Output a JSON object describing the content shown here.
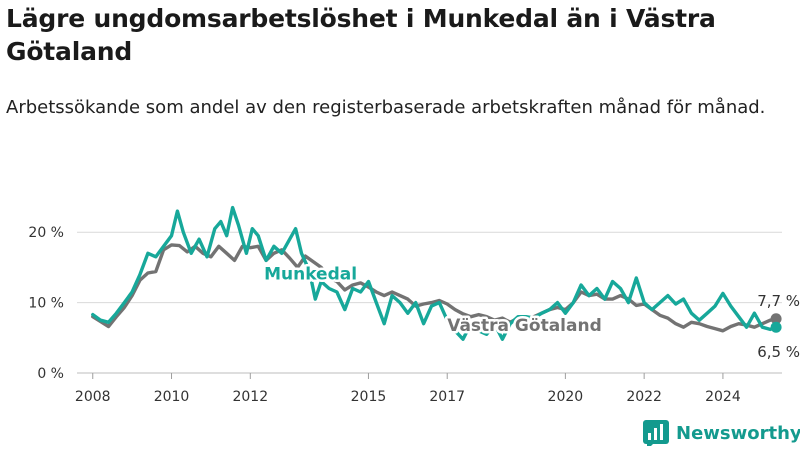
{
  "title": "Lägre ungdomsarbetslöshet i Munkedal än i Västra Götaland",
  "subtitle": "Arbetssökande som andel av den registerbaserade arbetskraften månad för månad.",
  "brand": "Newsworthy",
  "colors": {
    "munkedal": "#17a89a",
    "vastra_gotaland": "#737373",
    "grid": "#d9d9d9",
    "text": "#333333"
  },
  "chart_data": {
    "type": "line",
    "title": "Lägre ungdomsarbetslöshet i Munkedal än i Västra Götaland",
    "subtitle": "Arbetssökande som andel av den registerbaserade arbetskraften månad för månad.",
    "x_ticks": [
      2008,
      2010,
      2012,
      2015,
      2017,
      2020,
      2022,
      2024
    ],
    "xlim": [
      2007.6,
      2025.5
    ],
    "y_ticks": [
      {
        "value": 0,
        "label": "0 %"
      },
      {
        "value": 10,
        "label": "10 %"
      },
      {
        "value": 20,
        "label": "20 %"
      }
    ],
    "ylim": [
      0,
      25
    ],
    "grid": "horizontal",
    "end_labels": [
      {
        "series": "Västra Götaland",
        "text": "7,7 %"
      },
      {
        "series": "Munkedal",
        "text": "6,5 %"
      }
    ],
    "series": [
      {
        "name": "Västra Götaland",
        "color": "#737373",
        "points": [
          [
            2008.0,
            8.0
          ],
          [
            2008.2,
            7.3
          ],
          [
            2008.4,
            6.6
          ],
          [
            2008.6,
            8.0
          ],
          [
            2008.8,
            9.3
          ],
          [
            2009.0,
            11.0
          ],
          [
            2009.2,
            13.2
          ],
          [
            2009.4,
            14.2
          ],
          [
            2009.6,
            14.4
          ],
          [
            2009.8,
            17.5
          ],
          [
            2010.0,
            18.2
          ],
          [
            2010.2,
            18.1
          ],
          [
            2010.4,
            17.2
          ],
          [
            2010.6,
            18.0
          ],
          [
            2010.8,
            17.0
          ],
          [
            2011.0,
            16.5
          ],
          [
            2011.2,
            18.0
          ],
          [
            2011.4,
            17.0
          ],
          [
            2011.6,
            16.0
          ],
          [
            2011.8,
            18.0
          ],
          [
            2012.0,
            17.8
          ],
          [
            2012.2,
            18.0
          ],
          [
            2012.4,
            16.0
          ],
          [
            2012.6,
            17.0
          ],
          [
            2012.8,
            17.5
          ],
          [
            2013.0,
            16.3
          ],
          [
            2013.2,
            15.0
          ],
          [
            2013.4,
            16.6
          ],
          [
            2013.6,
            15.8
          ],
          [
            2013.8,
            15.0
          ],
          [
            2014.0,
            13.5
          ],
          [
            2014.2,
            13.0
          ],
          [
            2014.4,
            11.8
          ],
          [
            2014.6,
            12.5
          ],
          [
            2014.8,
            12.8
          ],
          [
            2015.0,
            12.2
          ],
          [
            2015.2,
            11.5
          ],
          [
            2015.4,
            11.0
          ],
          [
            2015.6,
            11.5
          ],
          [
            2015.8,
            11.0
          ],
          [
            2016.0,
            10.5
          ],
          [
            2016.2,
            9.5
          ],
          [
            2016.4,
            9.8
          ],
          [
            2016.6,
            10.0
          ],
          [
            2016.8,
            10.3
          ],
          [
            2017.0,
            9.8
          ],
          [
            2017.2,
            9.0
          ],
          [
            2017.4,
            8.4
          ],
          [
            2017.6,
            8.0
          ],
          [
            2017.8,
            8.3
          ],
          [
            2018.0,
            8.0
          ],
          [
            2018.2,
            7.5
          ],
          [
            2018.4,
            7.8
          ],
          [
            2018.6,
            7.2
          ],
          [
            2018.8,
            7.8
          ],
          [
            2019.0,
            7.6
          ],
          [
            2019.2,
            8.0
          ],
          [
            2019.4,
            8.5
          ],
          [
            2019.6,
            9.0
          ],
          [
            2019.8,
            9.3
          ],
          [
            2020.0,
            9.0
          ],
          [
            2020.2,
            10.0
          ],
          [
            2020.4,
            11.5
          ],
          [
            2020.6,
            11.0
          ],
          [
            2020.8,
            11.2
          ],
          [
            2021.0,
            10.5
          ],
          [
            2021.2,
            10.5
          ],
          [
            2021.4,
            11.0
          ],
          [
            2021.6,
            10.5
          ],
          [
            2021.8,
            9.6
          ],
          [
            2022.0,
            9.8
          ],
          [
            2022.2,
            9.0
          ],
          [
            2022.4,
            8.2
          ],
          [
            2022.6,
            7.8
          ],
          [
            2022.8,
            7.0
          ],
          [
            2023.0,
            6.5
          ],
          [
            2023.2,
            7.2
          ],
          [
            2023.4,
            7.0
          ],
          [
            2023.6,
            6.6
          ],
          [
            2023.8,
            6.3
          ],
          [
            2024.0,
            6.0
          ],
          [
            2024.2,
            6.6
          ],
          [
            2024.4,
            7.0
          ],
          [
            2024.6,
            6.8
          ],
          [
            2024.8,
            6.5
          ],
          [
            2025.0,
            7.0
          ],
          [
            2025.2,
            7.5
          ],
          [
            2025.35,
            7.7
          ]
        ]
      },
      {
        "name": "Munkedal",
        "color": "#17a89a",
        "points": [
          [
            2008.0,
            8.3
          ],
          [
            2008.2,
            7.5
          ],
          [
            2008.4,
            7.2
          ],
          [
            2008.6,
            8.5
          ],
          [
            2008.8,
            10.0
          ],
          [
            2009.0,
            11.5
          ],
          [
            2009.2,
            14.0
          ],
          [
            2009.4,
            17.0
          ],
          [
            2009.6,
            16.5
          ],
          [
            2009.8,
            18.0
          ],
          [
            2010.0,
            19.5
          ],
          [
            2010.15,
            23.0
          ],
          [
            2010.3,
            20.0
          ],
          [
            2010.5,
            17.0
          ],
          [
            2010.7,
            19.0
          ],
          [
            2010.9,
            16.5
          ],
          [
            2011.1,
            20.5
          ],
          [
            2011.25,
            21.5
          ],
          [
            2011.4,
            19.5
          ],
          [
            2011.55,
            23.5
          ],
          [
            2011.7,
            21.0
          ],
          [
            2011.9,
            17.0
          ],
          [
            2012.05,
            20.5
          ],
          [
            2012.2,
            19.5
          ],
          [
            2012.4,
            16.0
          ],
          [
            2012.6,
            18.0
          ],
          [
            2012.8,
            17.0
          ],
          [
            2013.0,
            19.0
          ],
          [
            2013.15,
            20.5
          ],
          [
            2013.3,
            17.0
          ],
          [
            2013.5,
            14.5
          ],
          [
            2013.65,
            10.5
          ],
          [
            2013.8,
            13.0
          ],
          [
            2014.0,
            12.0
          ],
          [
            2014.2,
            11.5
          ],
          [
            2014.4,
            9.0
          ],
          [
            2014.6,
            12.0
          ],
          [
            2014.8,
            11.5
          ],
          [
            2015.0,
            13.0
          ],
          [
            2015.2,
            10.0
          ],
          [
            2015.4,
            7.0
          ],
          [
            2015.6,
            11.0
          ],
          [
            2015.8,
            10.0
          ],
          [
            2016.0,
            8.5
          ],
          [
            2016.2,
            10.0
          ],
          [
            2016.4,
            7.0
          ],
          [
            2016.6,
            9.5
          ],
          [
            2016.8,
            10.0
          ],
          [
            2017.0,
            7.5
          ],
          [
            2017.2,
            6.0
          ],
          [
            2017.4,
            4.8
          ],
          [
            2017.6,
            7.0
          ],
          [
            2017.8,
            6.0
          ],
          [
            2018.0,
            5.5
          ],
          [
            2018.2,
            7.0
          ],
          [
            2018.4,
            4.8
          ],
          [
            2018.6,
            7.0
          ],
          [
            2018.8,
            8.0
          ],
          [
            2019.0,
            8.0
          ],
          [
            2019.2,
            7.8
          ],
          [
            2019.4,
            8.5
          ],
          [
            2019.6,
            9.0
          ],
          [
            2019.8,
            10.0
          ],
          [
            2020.0,
            8.5
          ],
          [
            2020.2,
            10.0
          ],
          [
            2020.4,
            12.5
          ],
          [
            2020.6,
            11.0
          ],
          [
            2020.8,
            12.0
          ],
          [
            2021.0,
            10.5
          ],
          [
            2021.2,
            13.0
          ],
          [
            2021.4,
            12.0
          ],
          [
            2021.6,
            10.0
          ],
          [
            2021.8,
            13.5
          ],
          [
            2022.0,
            10.0
          ],
          [
            2022.2,
            9.0
          ],
          [
            2022.4,
            10.0
          ],
          [
            2022.6,
            11.0
          ],
          [
            2022.8,
            9.8
          ],
          [
            2023.0,
            10.5
          ],
          [
            2023.2,
            8.5
          ],
          [
            2023.4,
            7.5
          ],
          [
            2023.6,
            8.5
          ],
          [
            2023.8,
            9.5
          ],
          [
            2024.0,
            11.3
          ],
          [
            2024.2,
            9.5
          ],
          [
            2024.4,
            8.0
          ],
          [
            2024.6,
            6.5
          ],
          [
            2024.8,
            8.5
          ],
          [
            2025.0,
            6.5
          ],
          [
            2025.2,
            6.2
          ],
          [
            2025.35,
            6.5
          ]
        ]
      }
    ]
  }
}
